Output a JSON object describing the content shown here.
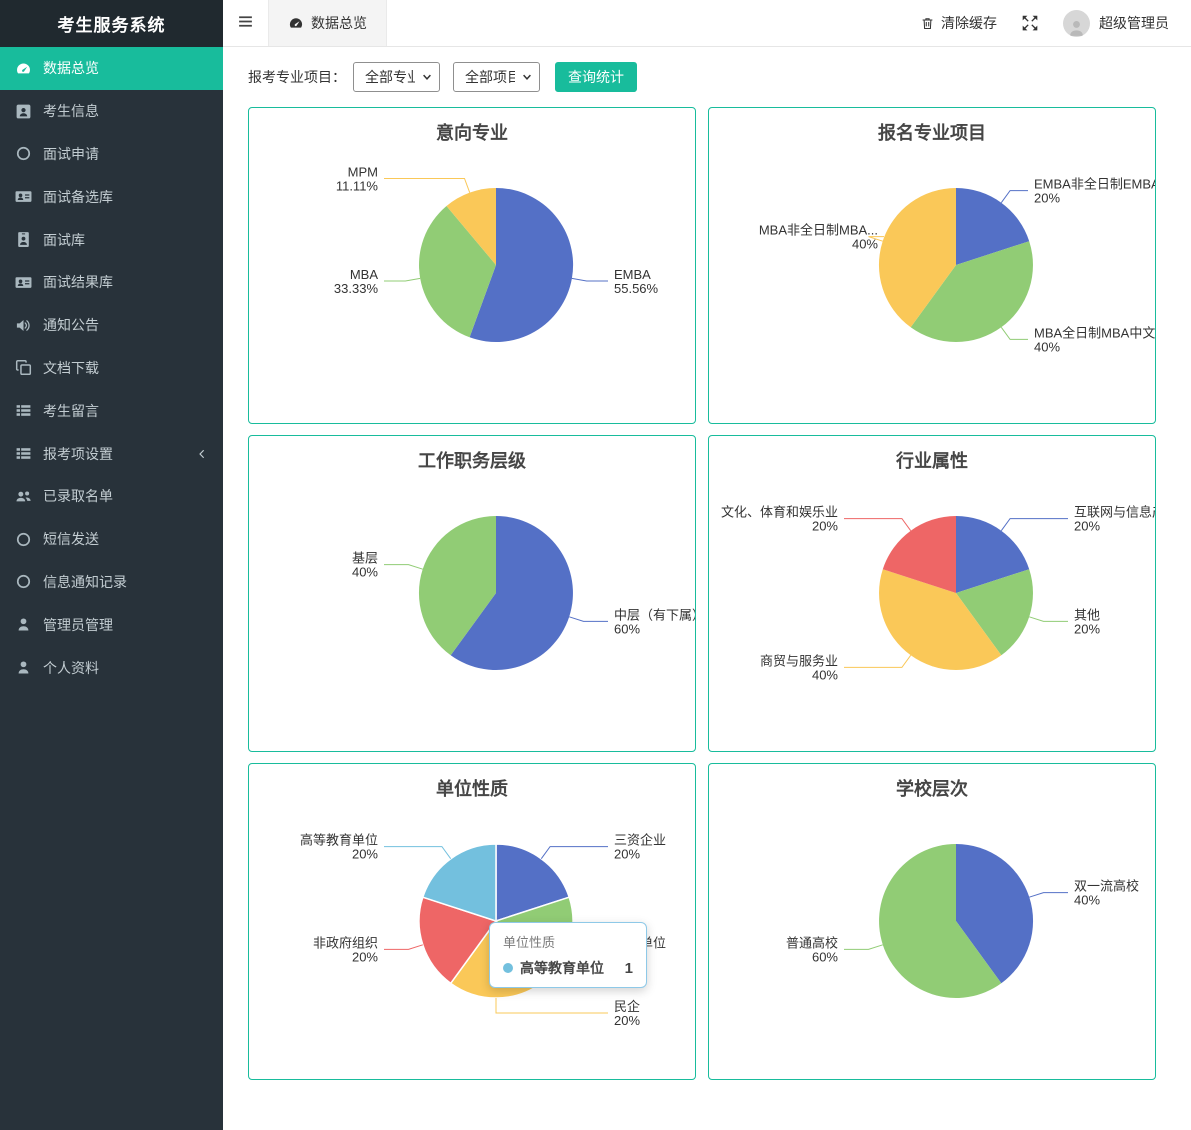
{
  "app": {
    "title": "考生服务系统"
  },
  "sidebar": {
    "items": [
      {
        "key": "data-overview",
        "label": "数据总览",
        "icon": "gauge-icon",
        "active": true
      },
      {
        "key": "candidate-info",
        "label": "考生信息",
        "icon": "id-card-icon",
        "active": false
      },
      {
        "key": "interview-apply",
        "label": "面试申请",
        "icon": "circle-icon",
        "active": false
      },
      {
        "key": "interview-backup",
        "label": "面试备选库",
        "icon": "address-card-icon",
        "active": false
      },
      {
        "key": "interview-library",
        "label": "面试库",
        "icon": "id-badge-icon",
        "active": false
      },
      {
        "key": "interview-results",
        "label": "面试结果库",
        "icon": "address-card-icon",
        "active": false
      },
      {
        "key": "notice",
        "label": "通知公告",
        "icon": "volume-icon",
        "active": false
      },
      {
        "key": "document-download",
        "label": "文档下载",
        "icon": "clone-icon",
        "active": false
      },
      {
        "key": "candidate-messages",
        "label": "考生留言",
        "icon": "list-icon",
        "active": false
      },
      {
        "key": "application-settings",
        "label": "报考项设置",
        "icon": "list-icon",
        "active": false,
        "chevron": true
      },
      {
        "key": "admitted-list",
        "label": "已录取名单",
        "icon": "users-icon",
        "active": false
      },
      {
        "key": "sms-send",
        "label": "短信发送",
        "icon": "circle-icon",
        "active": false
      },
      {
        "key": "notification-log",
        "label": "信息通知记录",
        "icon": "circle-icon",
        "active": false
      },
      {
        "key": "admin-manage",
        "label": "管理员管理",
        "icon": "user-icon",
        "active": false
      },
      {
        "key": "profile",
        "label": "个人资料",
        "icon": "user-icon",
        "active": false
      }
    ]
  },
  "topbar": {
    "tab_label": "数据总览",
    "clear_cache_label": "清除缓存",
    "username": "超级管理员"
  },
  "filters": {
    "label": "报考专业项目：",
    "major_select_value": "全部专业",
    "project_select_value": "全部项目",
    "query_button_label": "查询统计"
  },
  "colors": {
    "accent": "#18BC9C",
    "sidebar_bg": "#28323A",
    "pie_blue": "#5470C6",
    "pie_green": "#91CC75",
    "pie_yellow": "#FAC858",
    "pie_red": "#EE6666",
    "pie_skyblue": "#73C0DE"
  },
  "chart_data": [
    {
      "type": "pie",
      "key": "intended-major",
      "title": "意向专业",
      "slices": [
        {
          "name": "EMBA",
          "value": 55.56,
          "percent_label": "55.56%",
          "color": "#5470C6"
        },
        {
          "name": "MBA",
          "value": 33.33,
          "percent_label": "33.33%",
          "color": "#91CC75"
        },
        {
          "name": "MPM",
          "value": 11.11,
          "percent_label": "11.11%",
          "color": "#FAC858"
        }
      ]
    },
    {
      "type": "pie",
      "key": "registered-program",
      "title": "报名专业项目",
      "label_offset": 72,
      "slices": [
        {
          "name": "EMBA非全日制EMBA长三",
          "value": 20,
          "percent_label": "20%",
          "color": "#5470C6"
        },
        {
          "name": "MBA全日制MBA中文班",
          "value": 40,
          "percent_label": "40%",
          "color": "#91CC75"
        },
        {
          "name": "MBA非全日制MBA...",
          "value": 40,
          "percent_label": "40%",
          "color": "#FAC858"
        }
      ]
    },
    {
      "type": "pie",
      "key": "job-level",
      "title": "工作职务层级",
      "slices": [
        {
          "name": "中层（有下属）",
          "value": 60,
          "percent_label": "60%",
          "color": "#5470C6"
        },
        {
          "name": "基层",
          "value": 40,
          "percent_label": "40%",
          "color": "#91CC75"
        }
      ]
    },
    {
      "type": "pie",
      "key": "industry",
      "title": "行业属性",
      "slices": [
        {
          "name": "互联网与信息产业",
          "value": 20,
          "percent_label": "20%",
          "color": "#5470C6"
        },
        {
          "name": "其他",
          "value": 20,
          "percent_label": "20%",
          "color": "#91CC75"
        },
        {
          "name": "商贸与服务业",
          "value": 40,
          "percent_label": "40%",
          "color": "#FAC858"
        },
        {
          "name": "文化、体育和娱乐业",
          "value": 20,
          "percent_label": "20%",
          "color": "#EE6666"
        }
      ]
    },
    {
      "type": "pie",
      "key": "employer-type",
      "title": "单位性质",
      "slice_border": true,
      "slices": [
        {
          "name": "三资企业",
          "value": 20,
          "percent_label": "20%",
          "color": "#5470C6"
        },
        {
          "name": "事业单位",
          "value": 20,
          "percent_label": "20%",
          "color": "#91CC75"
        },
        {
          "name": "民企",
          "value": 20,
          "percent_label": "20%",
          "color": "#FAC858"
        },
        {
          "name": "非政府组织",
          "value": 20,
          "percent_label": "20%",
          "color": "#EE6666"
        },
        {
          "name": "高等教育单位",
          "value": 20,
          "percent_label": "20%",
          "color": "#73C0DE"
        }
      ],
      "tooltip": {
        "title": "单位性质",
        "item_name": "高等教育单位",
        "value": "1",
        "marker_color": "#73C0DE"
      }
    },
    {
      "type": "pie",
      "key": "school-tier",
      "title": "学校层次",
      "slices": [
        {
          "name": "双一流高校",
          "value": 40,
          "percent_label": "40%",
          "color": "#5470C6"
        },
        {
          "name": "普通高校",
          "value": 60,
          "percent_label": "60%",
          "color": "#91CC75"
        }
      ]
    }
  ]
}
